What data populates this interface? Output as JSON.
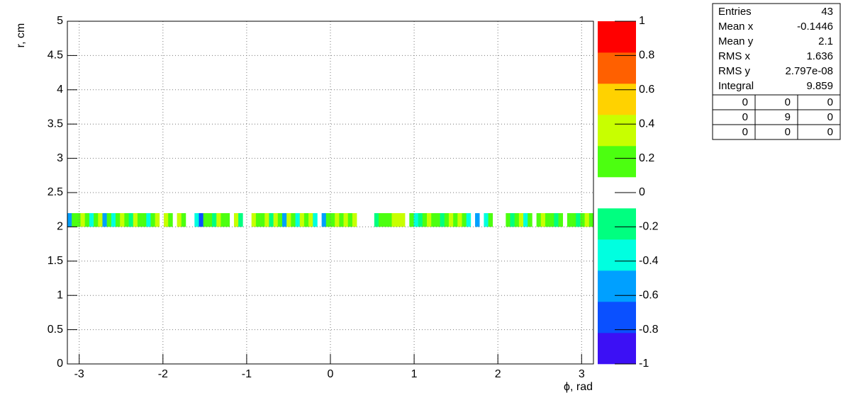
{
  "chart_data": {
    "type": "heatmap",
    "xlabel": "ϕ, rad",
    "ylabel": "r, cm",
    "xlim": [
      -3.1416,
      3.1416
    ],
    "ylim": [
      0,
      5
    ],
    "xticks": [
      -3,
      -2,
      -1,
      0,
      1,
      2,
      3
    ],
    "yticks": [
      0,
      0.5,
      1,
      1.5,
      2,
      2.5,
      3,
      3.5,
      4,
      4.5,
      5
    ],
    "grid": true,
    "ybin": [
      2,
      2.2
    ],
    "values": [
      -0.5,
      0.1,
      0.1,
      0.3,
      0.1,
      -0.3,
      0.1,
      0.3,
      -0.5,
      0.1,
      -0.3,
      0.1,
      0.3,
      0.1,
      -0.1,
      0.3,
      0.1,
      0.1,
      -0.3,
      0.1,
      0.3,
      null,
      0.3,
      0.1,
      null,
      0.3,
      0.1,
      null,
      null,
      -0.3,
      -0.7,
      0.1,
      0.1,
      -0.1,
      0.3,
      0.1,
      0.1,
      null,
      0.3,
      -0.1,
      null,
      null,
      0.3,
      0.1,
      0.1,
      0.3,
      -0.1,
      0.3,
      0.1,
      -0.5,
      0.3,
      0.1,
      -0.3,
      0.3,
      0.1,
      0.3,
      -0.3,
      null,
      -0.5,
      0.1,
      0.1,
      0.3,
      0.1,
      0.3,
      0.1,
      0.3,
      null,
      null,
      null,
      null,
      -0.1,
      0.1,
      0.1,
      0.1,
      0.3,
      0.3,
      0.3,
      null,
      0.1,
      -0.3,
      -0.1,
      0.1,
      0.3,
      0.1,
      0.1,
      -0.1,
      0.1,
      0.3,
      0.1,
      0.3,
      0.1,
      -0.3,
      null,
      -0.5,
      null,
      -0.3,
      0.1,
      null,
      null,
      null,
      0.1,
      -0.1,
      0.1,
      0.3,
      -0.3,
      0.1,
      null,
      0.1,
      0.3,
      0.1,
      0.1,
      -0.1,
      0.1,
      null,
      0.1,
      0.1,
      -0.1,
      0.1,
      0.3,
      0.1
    ],
    "zlim": [
      -1,
      1
    ],
    "zticks": [
      -1,
      -0.8,
      -0.6,
      -0.4,
      -0.2,
      0,
      0.2,
      0.4,
      0.6,
      0.8,
      1
    ],
    "palette": [
      "#3c10f5",
      "#0a50ff",
      "#00a0ff",
      "#00ffe0",
      "#00ff80",
      "#ffffff",
      "#4cff10",
      "#c8ff00",
      "#ffd200",
      "#ff6000",
      "#ff0000"
    ]
  },
  "stats": {
    "rows": [
      {
        "label": "Entries",
        "value": 43
      },
      {
        "label": "Mean x",
        "value": -0.1446
      },
      {
        "label": "Mean y",
        "value": 2.1
      },
      {
        "label": "RMS x",
        "value": 1.636
      },
      {
        "label": "RMS y",
        "value": "2.797e-08"
      },
      {
        "label": "Integral",
        "value": 9.859
      }
    ],
    "grid": [
      [
        0,
        0,
        0
      ],
      [
        0,
        9,
        0
      ],
      [
        0,
        0,
        0
      ]
    ]
  }
}
